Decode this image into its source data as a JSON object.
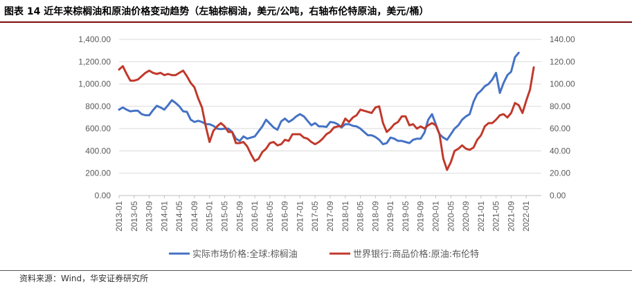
{
  "header": {
    "title": "图表 14  近年来棕榈油和原油价格变动趋势（左轴棕榈油，美元/公吨，右轴布伦特原油，美元/桶）"
  },
  "footer": {
    "source": "资料来源：Wind，华安证券研究所"
  },
  "chart_data": {
    "type": "line",
    "title": "",
    "xlabel": "",
    "ylabel": "",
    "legend_position": "bottom",
    "grid": true,
    "x_tick_labels": [
      "2013-01",
      "2013-05",
      "2013-09",
      "2014-01",
      "2014-05",
      "2014-09",
      "2015-01",
      "2015-05",
      "2015-09",
      "2016-01",
      "2016-05",
      "2016-09",
      "2017-01",
      "2017-05",
      "2017-09",
      "2018-01",
      "2018-05",
      "2018-09",
      "2019-01",
      "2019-05",
      "2019-09",
      "2020-01",
      "2020-05",
      "2020-09",
      "2021-01",
      "2021-05",
      "2021-09",
      "2022-01"
    ],
    "y_left": {
      "min": 0,
      "max": 1400,
      "ticks": [
        "0.00",
        "200.00",
        "400.00",
        "600.00",
        "800.00",
        "1,000.00",
        "1,200.00",
        "1,400.00"
      ]
    },
    "y_right": {
      "min": 0,
      "max": 140,
      "ticks": [
        "0.00",
        "20.00",
        "40.00",
        "60.00",
        "80.00",
        "100.00",
        "120.00",
        "140.00"
      ]
    },
    "series": [
      {
        "name": "实际市场价格:全球:棕榈油",
        "axis": "left",
        "color": "#4472c4",
        "start": "2013-01",
        "values": [
          770,
          790,
          770,
          755,
          760,
          760,
          730,
          720,
          720,
          765,
          805,
          790,
          770,
          810,
          855,
          830,
          800,
          755,
          750,
          680,
          660,
          670,
          660,
          640,
          640,
          625,
          600,
          595,
          600,
          600,
          570,
          510,
          490,
          530,
          510,
          520,
          530,
          575,
          620,
          680,
          645,
          610,
          590,
          665,
          690,
          660,
          680,
          710,
          730,
          710,
          670,
          630,
          650,
          620,
          620,
          615,
          660,
          655,
          640,
          610,
          640,
          640,
          625,
          620,
          600,
          570,
          540,
          540,
          525,
          500,
          460,
          470,
          520,
          510,
          490,
          490,
          480,
          470,
          500,
          510,
          510,
          565,
          680,
          730,
          640,
          550,
          520,
          500,
          550,
          600,
          630,
          680,
          710,
          730,
          840,
          910,
          940,
          980,
          1000,
          1040,
          1100,
          920,
          1010,
          1080,
          1110,
          1240,
          1280
        ]
      },
      {
        "name": "世界银行:商品价格:原油:布伦特",
        "axis": "right",
        "color": "#c0392b",
        "start": "2013-01",
        "values": [
          113,
          116,
          109,
          103,
          103,
          104,
          107,
          110,
          112,
          110,
          109,
          110,
          108,
          109,
          108,
          108,
          110,
          112,
          107,
          101,
          97,
          87,
          79,
          62,
          48,
          58,
          62,
          65,
          62,
          57,
          57,
          47,
          47,
          48,
          44,
          37,
          31,
          33,
          39,
          42,
          47,
          48,
          45,
          46,
          50,
          49,
          55,
          55,
          55,
          52,
          51,
          48,
          46,
          48,
          51,
          55,
          57,
          61,
          62,
          62,
          69,
          66,
          70,
          72,
          77,
          76,
          75,
          74,
          79,
          80,
          65,
          57,
          60,
          64,
          66,
          71,
          71,
          63,
          64,
          60,
          62,
          60,
          63,
          65,
          63,
          55,
          33,
          23,
          30,
          40,
          42,
          45,
          42,
          41,
          43,
          50,
          54,
          62,
          65,
          65,
          68,
          72,
          73,
          70,
          74,
          83,
          81,
          74,
          85,
          95,
          115
        ]
      }
    ]
  }
}
